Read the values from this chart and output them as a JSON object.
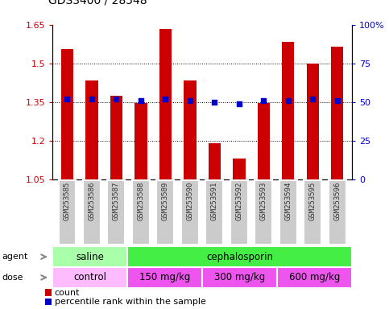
{
  "title": "GDS3400 / 28548",
  "samples": [
    "GSM253585",
    "GSM253586",
    "GSM253587",
    "GSM253588",
    "GSM253589",
    "GSM253590",
    "GSM253591",
    "GSM253592",
    "GSM253593",
    "GSM253594",
    "GSM253595",
    "GSM253596"
  ],
  "bar_values": [
    1.555,
    1.435,
    1.375,
    1.345,
    1.635,
    1.435,
    1.19,
    1.13,
    1.345,
    1.585,
    1.5,
    1.565
  ],
  "percentile_values": [
    52,
    52,
    52,
    51,
    52,
    51,
    50,
    49,
    51,
    51,
    52,
    51
  ],
  "bar_color": "#cc0000",
  "percentile_color": "#0000cc",
  "ylim_left": [
    1.05,
    1.65
  ],
  "ylim_right": [
    0,
    100
  ],
  "yticks_left": [
    1.05,
    1.2,
    1.35,
    1.5,
    1.65
  ],
  "yticks_right": [
    0,
    25,
    50,
    75,
    100
  ],
  "ytick_labels_left": [
    "1.05",
    "1.2",
    "1.35",
    "1.5",
    "1.65"
  ],
  "ytick_labels_right": [
    "0",
    "25",
    "50",
    "75",
    "100%"
  ],
  "agent_groups": [
    {
      "label": "saline",
      "start": 0,
      "end": 3,
      "color": "#aaeea a"
    },
    {
      "label": "cephalosporin",
      "start": 3,
      "end": 12,
      "color": "#44dd44"
    }
  ],
  "dose_groups": [
    {
      "label": "control",
      "start": 0,
      "end": 3,
      "color": "#f0bbee"
    },
    {
      "label": "150 mg/kg",
      "start": 3,
      "end": 6,
      "color": "#ee66dd"
    },
    {
      "label": "300 mg/kg",
      "start": 6,
      "end": 9,
      "color": "#ee66dd"
    },
    {
      "label": "600 mg/kg",
      "start": 9,
      "end": 12,
      "color": "#ee66dd"
    }
  ],
  "legend_count_color": "#cc0000",
  "legend_percentile_color": "#0000cc",
  "bar_width": 0.5,
  "left_tick_color": "#cc0000",
  "right_tick_color": "#0000cc",
  "agent_saline_color": "#aaffaa",
  "agent_ceph_color": "#44ee44",
  "dose_control_color": "#ffbbff",
  "dose_other_color": "#ee55ee",
  "xtick_box_color": "#cccccc",
  "arrow_color": "#888888"
}
